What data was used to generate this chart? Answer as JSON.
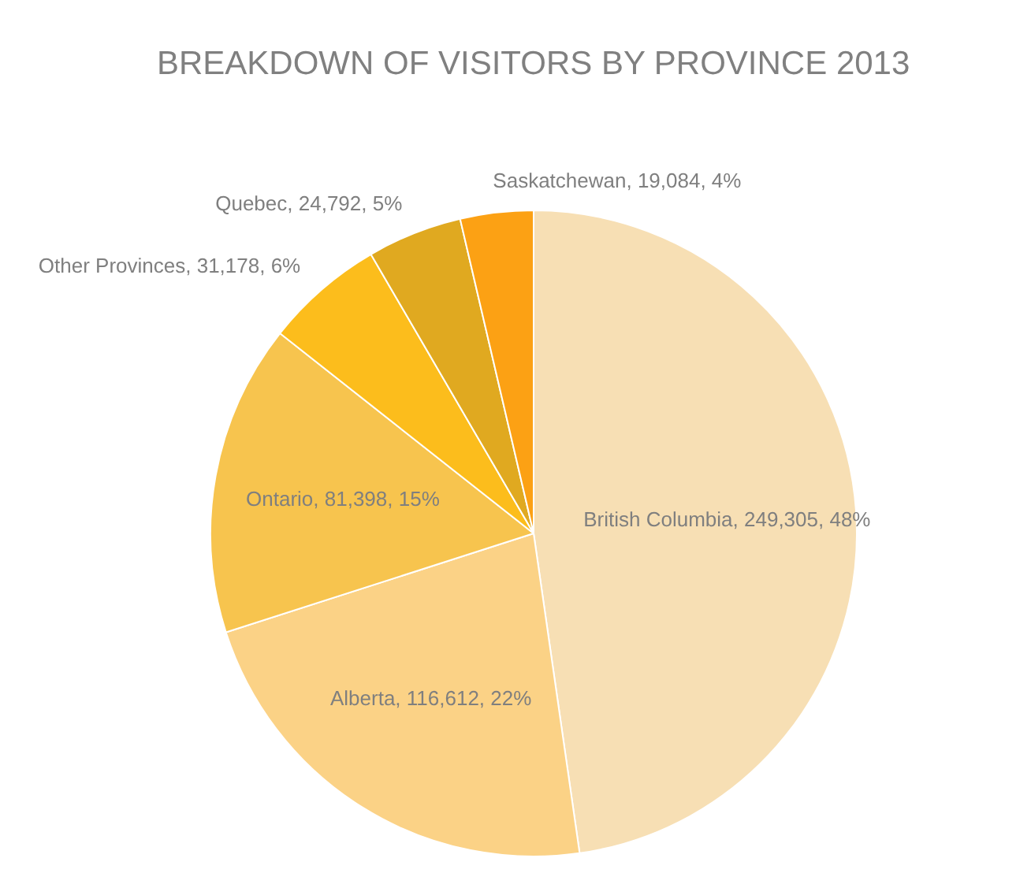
{
  "chart_data": {
    "type": "pie",
    "title": "BREAKDOWN OF VISITORS BY PROVINCE 2013",
    "categories": [
      "British Columbia",
      "Alberta",
      "Ontario",
      "Other Provinces",
      "Quebec",
      "Saskatchewan"
    ],
    "values": [
      249305,
      116612,
      81398,
      31178,
      24792,
      19084
    ],
    "value_labels": [
      "249,305, 48%",
      "116,612, 22%",
      "81,398, 15%",
      "31,178, 6%",
      "24,792, 5%",
      "19,084, 4%"
    ],
    "colors": [
      "#f7dfb4",
      "#fbd286",
      "#f7c44e",
      "#fcbd1c",
      "#e0a920",
      "#fca114"
    ]
  }
}
